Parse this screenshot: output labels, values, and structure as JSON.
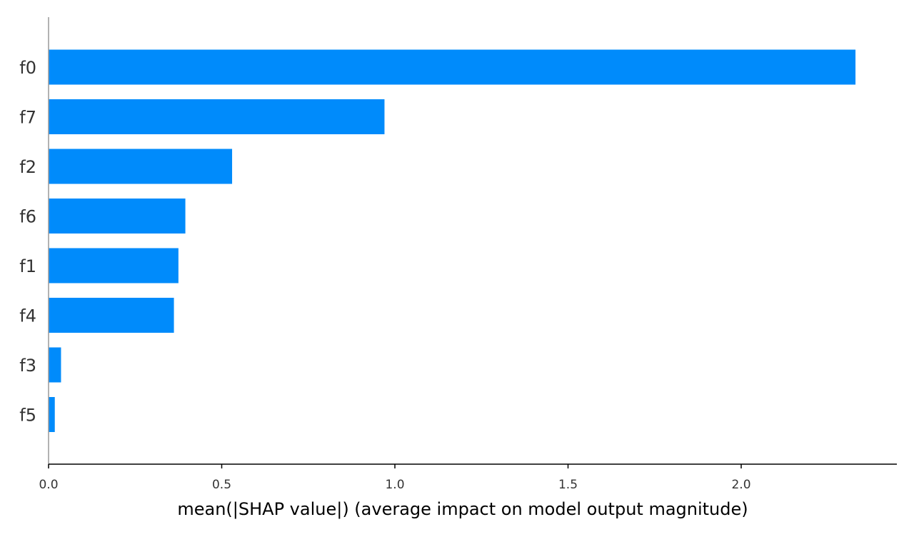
{
  "chart_data": {
    "type": "bar",
    "orientation": "horizontal",
    "categories": [
      "f0",
      "f7",
      "f2",
      "f6",
      "f1",
      "f4",
      "f3",
      "f5"
    ],
    "values": [
      2.33,
      0.97,
      0.53,
      0.395,
      0.375,
      0.362,
      0.036,
      0.018
    ],
    "xlabel": "mean(|SHAP value|) (average impact on model output magnitude)",
    "xlim": [
      0,
      2.45
    ],
    "xticks": [
      0.0,
      0.5,
      1.0,
      1.5,
      2.0
    ],
    "xtick_labels": [
      "0.0",
      "0.5",
      "1.0",
      "1.5",
      "2.0"
    ],
    "grid": false,
    "bar_color": "#008bfb"
  }
}
